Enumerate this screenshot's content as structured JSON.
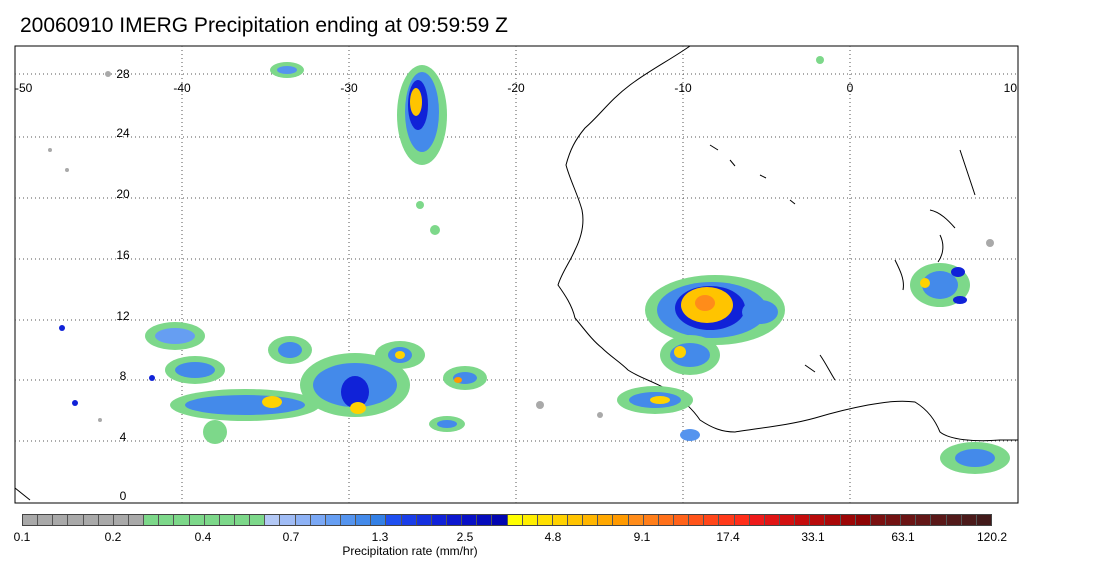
{
  "title": "20060910 IMERG Precipitation ending at 09:59:59 Z",
  "map": {
    "lon_range": [
      -50,
      10
    ],
    "lat_range": [
      -1,
      31
    ],
    "lon_tick_labels": [
      "-50",
      "-40",
      "-30",
      "-20",
      "-10",
      "0",
      "10"
    ],
    "lat_tick_labels": [
      "0",
      "4",
      "8",
      "12",
      "16",
      "20",
      "24",
      "28"
    ],
    "grid": "dotted"
  },
  "colorbar": {
    "title": "Precipitation rate (mm/hr)",
    "tick_labels": [
      "0.1",
      "0.2",
      "0.4",
      "0.7",
      "1.3",
      "2.5",
      "4.8",
      "9.1",
      "17.4",
      "33.1",
      "63.1",
      "120.2"
    ],
    "colors": [
      "#a9a9a9",
      "#a9a9a9",
      "#a9a9a9",
      "#a9a9a9",
      "#a9a9a9",
      "#a9a9a9",
      "#a9a9a9",
      "#a9a9a9",
      "#7dd88a",
      "#7dd88a",
      "#7dd88a",
      "#7dd88a",
      "#7dd88a",
      "#7dd88a",
      "#7dd88a",
      "#7dd88a",
      "#b3c8f5",
      "#a0bcf5",
      "#8eb2f5",
      "#7aa8f5",
      "#669ef2",
      "#5594ee",
      "#448aea",
      "#3380e5",
      "#1f4ff0",
      "#1a3ee8",
      "#1530e0",
      "#1022d8",
      "#0c17cf",
      "#0810c5",
      "#050bbc",
      "#0206b0",
      "#ffff00",
      "#ffef00",
      "#ffe000",
      "#ffd200",
      "#ffc400",
      "#ffb600",
      "#ffa800",
      "#ff9a00",
      "#ff8c1a",
      "#ff7e1a",
      "#ff701a",
      "#ff621a",
      "#ff541a",
      "#ff461a",
      "#ff3a1a",
      "#ff2e1a",
      "#ee1a1a",
      "#e01515",
      "#d21010",
      "#c40c0c",
      "#b80a0a",
      "#aa0808",
      "#9c0606",
      "#8e0404",
      "#7a1010",
      "#721212",
      "#6a1414",
      "#621616",
      "#5a1818",
      "#521a1a",
      "#4a1a1a",
      "#421a1a"
    ]
  }
}
